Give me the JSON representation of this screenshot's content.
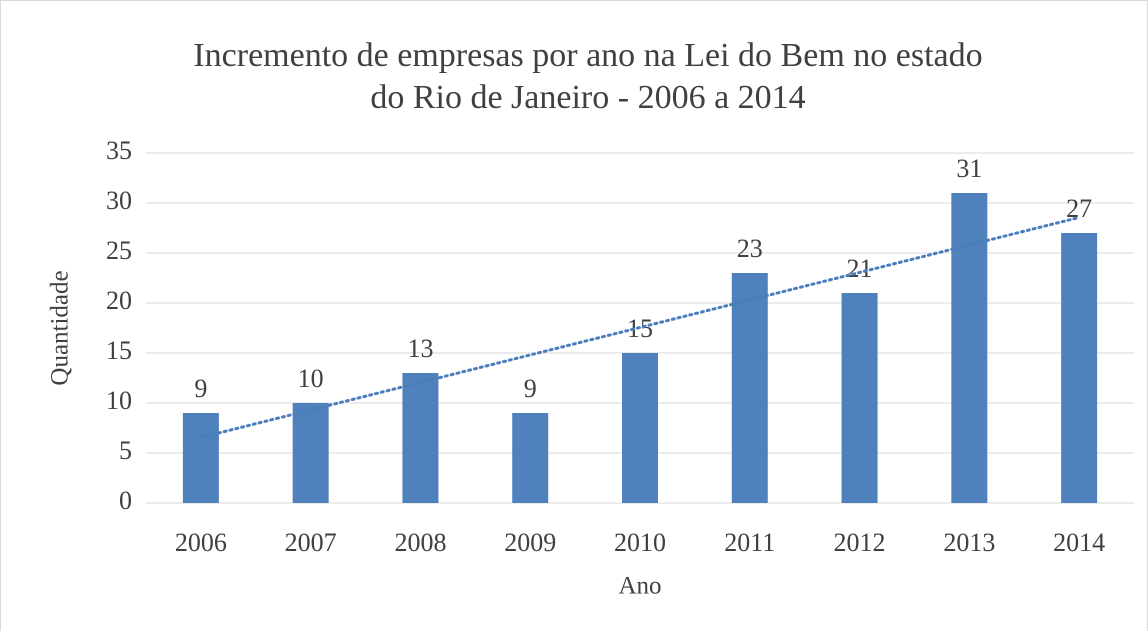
{
  "chart_data": {
    "type": "bar",
    "title": [
      "Incremento de empresas por ano na Lei do Bem no estado",
      "do Rio de Janeiro - 2006 a 2014"
    ],
    "x_label": "Ano",
    "y_label": "Quantidade",
    "categories": [
      "2006",
      "2007",
      "2008",
      "2009",
      "2010",
      "2011",
      "2012",
      "2013",
      "2014"
    ],
    "values": [
      9,
      10,
      13,
      9,
      15,
      23,
      21,
      31,
      27
    ],
    "color": "#4f81bd",
    "ylim": [
      0,
      35
    ],
    "yticks": [
      0,
      5,
      10,
      15,
      20,
      25,
      30,
      35
    ],
    "grid": true,
    "data_labels": true,
    "trendline": "linear",
    "trendline_color": "#4a7ebb"
  }
}
